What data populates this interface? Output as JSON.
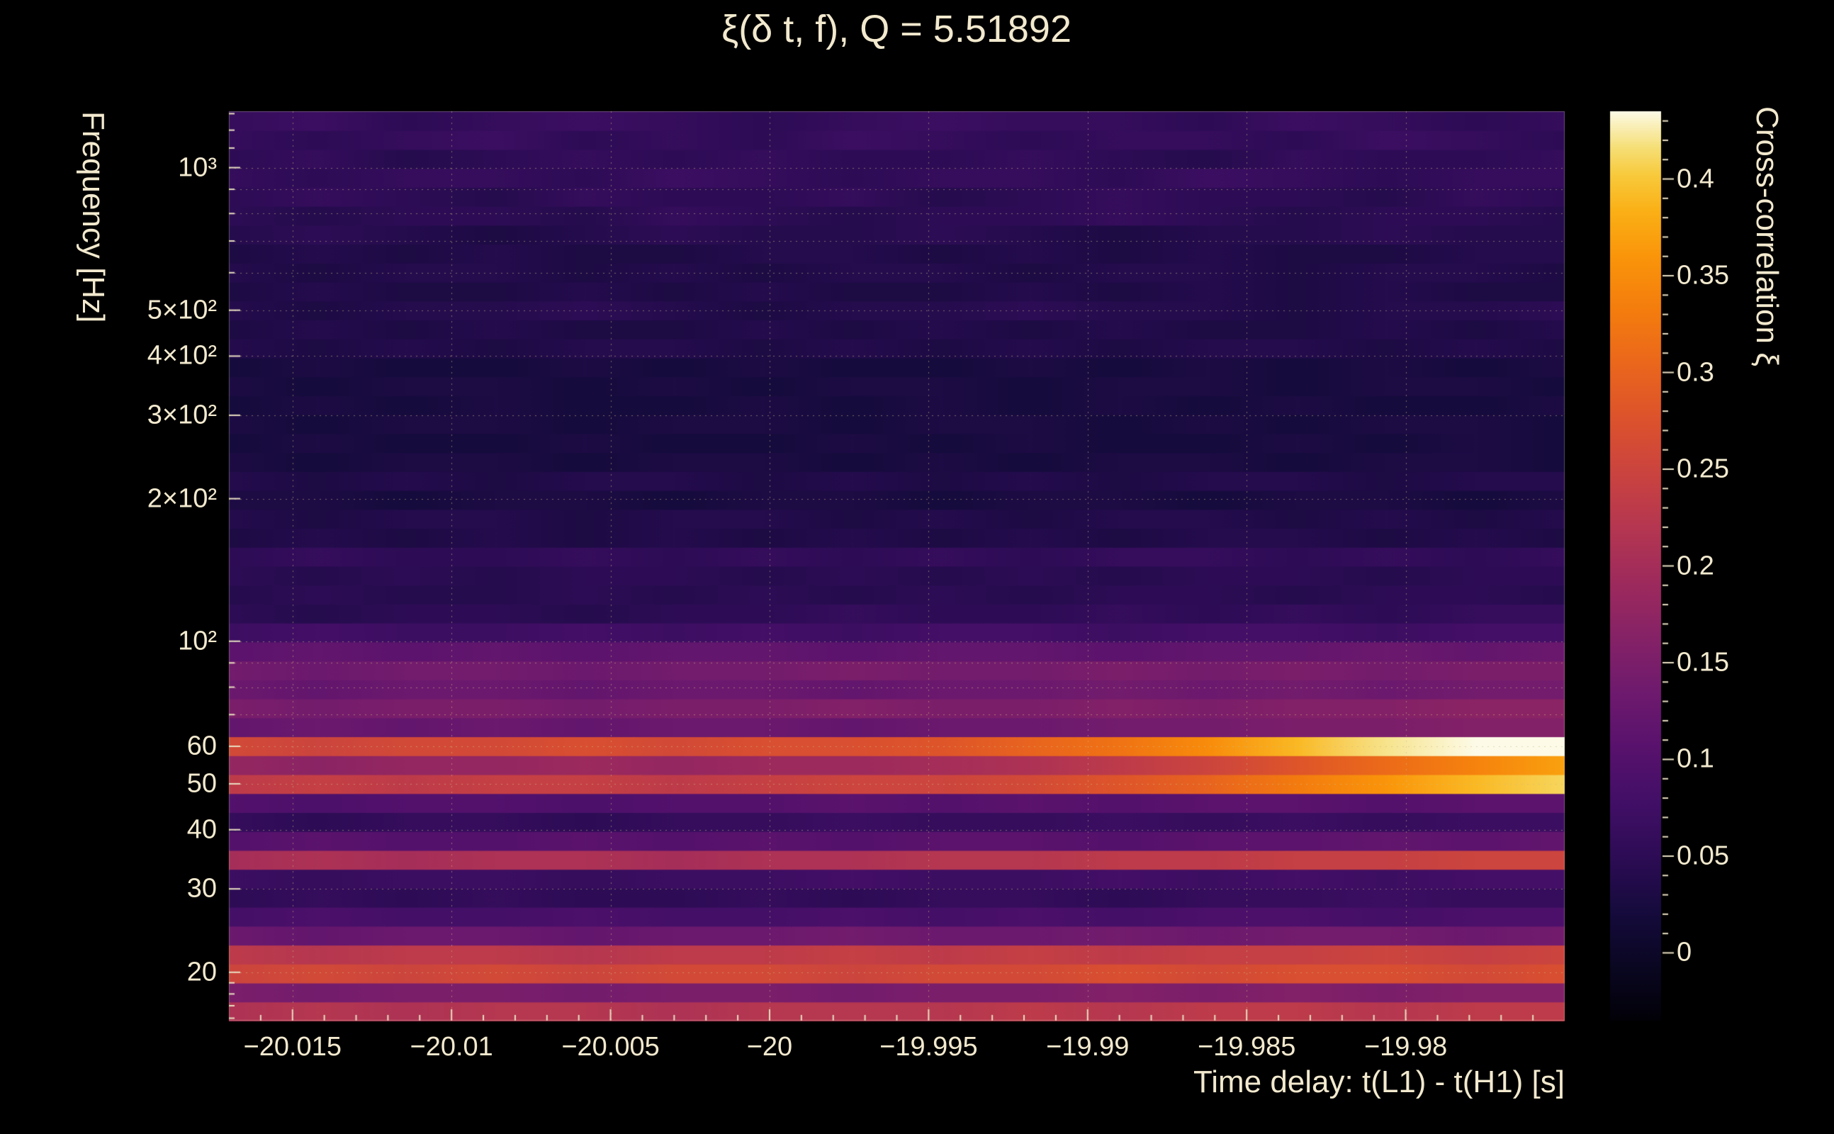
{
  "chart_data": {
    "type": "heatmap",
    "title": "ξ(δ t, f), Q = 5.51892",
    "xlabel": "Time delay: t(L1) - t(H1) [s]",
    "ylabel": "Frequency [Hz]",
    "zlabel": "Cross-correlation ξ",
    "x_range": [
      -20.017,
      -19.975
    ],
    "y_range_hz": [
      15.8,
      1315
    ],
    "y_scale": "log",
    "z_range": [
      -0.035,
      0.435
    ],
    "x_ticks": {
      "values": [
        -20.015,
        -20.01,
        -20.005,
        -20.0,
        -19.995,
        -19.99,
        -19.985,
        -19.98
      ],
      "labels": [
        "−20.015",
        "−20.01",
        "−20.005",
        "−20",
        "−19.995",
        "−19.99",
        "−19.985",
        "−19.98"
      ]
    },
    "y_ticks": {
      "values": [
        1000,
        500,
        400,
        300,
        200,
        100,
        60,
        50,
        40,
        30,
        20
      ],
      "labels": [
        "10³",
        "5×10²",
        "4×10²",
        "3×10²",
        "2×10²",
        "10²",
        "60",
        "50",
        "40",
        "30",
        "20"
      ]
    },
    "y_minor_ticks": [
      16,
      17,
      18,
      19,
      70,
      80,
      90,
      600,
      700,
      800,
      900,
      1100,
      1200,
      1300
    ],
    "grid_freqs": [
      20,
      30,
      40,
      50,
      60,
      70,
      80,
      90,
      100,
      200,
      300,
      400,
      500,
      600,
      700,
      800,
      900,
      1000
    ],
    "z_ticks": {
      "values": [
        0,
        0.05,
        0.1,
        0.15,
        0.2,
        0.25,
        0.3,
        0.35,
        0.4
      ],
      "labels": [
        "0",
        "0.05",
        "0.1",
        "0.15",
        "0.2",
        "0.25",
        "0.3",
        "0.35",
        "0.4"
      ]
    },
    "n_rows": 48,
    "n_cols": 16,
    "row_log_f_range": [
      1.199,
      3.119
    ],
    "rows": [
      [
        0.21,
        0.22,
        0.21,
        0.22,
        0.22,
        0.21,
        0.22,
        0.22,
        0.22,
        0.23,
        0.22,
        0.23,
        0.23,
        0.22,
        0.23,
        0.23
      ],
      [
        0.15,
        0.14,
        0.15,
        0.15,
        0.14,
        0.15,
        0.15,
        0.14,
        0.15,
        0.15,
        0.16,
        0.15,
        0.16,
        0.15,
        0.16,
        0.16
      ],
      [
        0.25,
        0.26,
        0.25,
        0.26,
        0.25,
        0.26,
        0.26,
        0.25,
        0.26,
        0.26,
        0.27,
        0.26,
        0.27,
        0.27,
        0.26,
        0.27
      ],
      [
        0.23,
        0.22,
        0.23,
        0.23,
        0.22,
        0.23,
        0.23,
        0.24,
        0.23,
        0.24,
        0.23,
        0.24,
        0.24,
        0.25,
        0.24,
        0.25
      ],
      [
        0.13,
        0.12,
        0.13,
        0.13,
        0.12,
        0.13,
        0.13,
        0.14,
        0.13,
        0.13,
        0.14,
        0.13,
        0.14,
        0.14,
        0.13,
        0.14
      ],
      [
        0.08,
        0.09,
        0.08,
        0.08,
        0.09,
        0.08,
        0.08,
        0.09,
        0.08,
        0.09,
        0.08,
        0.09,
        0.09,
        0.08,
        0.09,
        0.09
      ],
      [
        0.05,
        0.06,
        0.05,
        0.06,
        0.05,
        0.05,
        0.06,
        0.05,
        0.06,
        0.06,
        0.05,
        0.06,
        0.06,
        0.07,
        0.06,
        0.06
      ],
      [
        0.07,
        0.06,
        0.07,
        0.07,
        0.06,
        0.07,
        0.07,
        0.08,
        0.07,
        0.07,
        0.08,
        0.07,
        0.08,
        0.07,
        0.08,
        0.08
      ],
      [
        0.2,
        0.21,
        0.2,
        0.21,
        0.21,
        0.2,
        0.21,
        0.21,
        0.22,
        0.22,
        0.23,
        0.23,
        0.24,
        0.24,
        0.25,
        0.25
      ],
      [
        0.1,
        0.11,
        0.1,
        0.1,
        0.11,
        0.1,
        0.11,
        0.1,
        0.11,
        0.11,
        0.1,
        0.11,
        0.11,
        0.12,
        0.11,
        0.12
      ],
      [
        0.06,
        0.05,
        0.06,
        0.06,
        0.05,
        0.06,
        0.06,
        0.07,
        0.06,
        0.06,
        0.07,
        0.06,
        0.07,
        0.06,
        0.07,
        0.07
      ],
      [
        0.1,
        0.09,
        0.1,
        0.1,
        0.09,
        0.1,
        0.1,
        0.11,
        0.1,
        0.11,
        0.1,
        0.11,
        0.11,
        0.1,
        0.11,
        0.11
      ],
      [
        0.23,
        0.24,
        0.23,
        0.24,
        0.24,
        0.23,
        0.24,
        0.25,
        0.25,
        0.26,
        0.28,
        0.3,
        0.33,
        0.36,
        0.39,
        0.41
      ],
      [
        0.18,
        0.17,
        0.18,
        0.18,
        0.19,
        0.18,
        0.19,
        0.19,
        0.2,
        0.21,
        0.23,
        0.25,
        0.28,
        0.31,
        0.34,
        0.37
      ],
      [
        0.26,
        0.25,
        0.26,
        0.26,
        0.27,
        0.26,
        0.27,
        0.27,
        0.28,
        0.3,
        0.32,
        0.35,
        0.39,
        0.42,
        0.44,
        0.445
      ],
      [
        0.12,
        0.13,
        0.12,
        0.13,
        0.12,
        0.13,
        0.13,
        0.12,
        0.13,
        0.13,
        0.14,
        0.14,
        0.15,
        0.15,
        0.16,
        0.16
      ],
      [
        0.15,
        0.14,
        0.15,
        0.15,
        0.14,
        0.15,
        0.15,
        0.16,
        0.15,
        0.15,
        0.16,
        0.15,
        0.16,
        0.16,
        0.17,
        0.17
      ],
      [
        0.13,
        0.12,
        0.13,
        0.13,
        0.12,
        0.13,
        0.13,
        0.12,
        0.13,
        0.13,
        0.14,
        0.13,
        0.14,
        0.13,
        0.14,
        0.14
      ],
      [
        0.14,
        0.13,
        0.14,
        0.14,
        0.13,
        0.14,
        0.14,
        0.15,
        0.14,
        0.14,
        0.15,
        0.14,
        0.15,
        0.14,
        0.15,
        0.15
      ],
      [
        0.11,
        0.12,
        0.11,
        0.12,
        0.11,
        0.12,
        0.12,
        0.11,
        0.12,
        0.12,
        0.11,
        0.12,
        0.12,
        0.13,
        0.12,
        0.13
      ],
      [
        0.07,
        0.08,
        0.07,
        0.07,
        0.08,
        0.07,
        0.08,
        0.07,
        0.08,
        0.08,
        0.07,
        0.08,
        0.08,
        0.07,
        0.08,
        0.08
      ],
      [
        0.05,
        0.04,
        0.05,
        0.05,
        0.04,
        0.05,
        0.05,
        0.06,
        0.05,
        0.05,
        0.06,
        0.05,
        0.06,
        0.05,
        0.06,
        0.06
      ],
      [
        0.04,
        0.05,
        0.04,
        0.04,
        0.05,
        0.04,
        0.05,
        0.04,
        0.05,
        0.04,
        0.05,
        0.05,
        0.04,
        0.05,
        0.05,
        0.04
      ],
      [
        0.05,
        0.04,
        0.05,
        0.04,
        0.05,
        0.05,
        0.04,
        0.05,
        0.04,
        0.05,
        0.04,
        0.05,
        0.05,
        0.04,
        0.05,
        0.05
      ],
      [
        0.05,
        0.06,
        0.05,
        0.05,
        0.06,
        0.05,
        0.06,
        0.05,
        0.06,
        0.05,
        0.06,
        0.06,
        0.05,
        0.06,
        0.05,
        0.06
      ],
      [
        0.03,
        0.04,
        0.03,
        0.04,
        0.03,
        0.04,
        0.03,
        0.04,
        0.03,
        0.04,
        0.03,
        0.04,
        0.04,
        0.03,
        0.04,
        0.03
      ],
      [
        0.04,
        0.03,
        0.04,
        0.04,
        0.03,
        0.04,
        0.04,
        0.03,
        0.04,
        0.03,
        0.04,
        0.04,
        0.03,
        0.04,
        0.03,
        0.04
      ],
      [
        0.03,
        0.03,
        0.02,
        0.03,
        0.03,
        0.02,
        0.03,
        0.03,
        0.02,
        0.03,
        0.03,
        0.02,
        0.03,
        0.03,
        0.02,
        0.03
      ],
      [
        0.04,
        0.03,
        0.04,
        0.03,
        0.04,
        0.04,
        0.03,
        0.04,
        0.03,
        0.04,
        0.03,
        0.04,
        0.04,
        0.03,
        0.04,
        0.04
      ],
      [
        0.03,
        0.02,
        0.03,
        0.03,
        0.02,
        0.03,
        0.03,
        0.02,
        0.03,
        0.02,
        0.03,
        0.03,
        0.02,
        0.03,
        0.03,
        0.02
      ],
      [
        0.02,
        0.03,
        0.02,
        0.02,
        0.03,
        0.02,
        0.02,
        0.03,
        0.02,
        0.03,
        0.02,
        0.02,
        0.03,
        0.02,
        0.03,
        0.02
      ],
      [
        0.03,
        0.02,
        0.03,
        0.03,
        0.02,
        0.03,
        0.03,
        0.02,
        0.03,
        0.03,
        0.02,
        0.03,
        0.02,
        0.03,
        0.03,
        0.02
      ],
      [
        0.02,
        0.03,
        0.02,
        0.03,
        0.02,
        0.02,
        0.03,
        0.02,
        0.03,
        0.02,
        0.03,
        0.02,
        0.03,
        0.02,
        0.02,
        0.03
      ],
      [
        0.03,
        0.02,
        0.03,
        0.03,
        0.02,
        0.03,
        0.02,
        0.03,
        0.03,
        0.02,
        0.03,
        0.03,
        0.02,
        0.03,
        0.03,
        0.02
      ],
      [
        0.02,
        0.03,
        0.02,
        0.02,
        0.03,
        0.02,
        0.03,
        0.02,
        0.02,
        0.03,
        0.02,
        0.03,
        0.02,
        0.03,
        0.02,
        0.03
      ],
      [
        0.04,
        0.03,
        0.04,
        0.03,
        0.04,
        0.04,
        0.03,
        0.04,
        0.03,
        0.04,
        0.03,
        0.04,
        0.04,
        0.03,
        0.04,
        0.03
      ],
      [
        0.03,
        0.04,
        0.03,
        0.04,
        0.03,
        0.03,
        0.04,
        0.03,
        0.04,
        0.03,
        0.04,
        0.03,
        0.03,
        0.04,
        0.03,
        0.04
      ],
      [
        0.04,
        0.03,
        0.04,
        0.04,
        0.05,
        0.04,
        0.03,
        0.04,
        0.04,
        0.05,
        0.04,
        0.04,
        0.03,
        0.04,
        0.04,
        0.05
      ],
      [
        0.03,
        0.04,
        0.03,
        0.03,
        0.04,
        0.03,
        0.04,
        0.03,
        0.03,
        0.04,
        0.03,
        0.04,
        0.03,
        0.04,
        0.03,
        0.03
      ],
      [
        0.04,
        0.03,
        0.04,
        0.04,
        0.03,
        0.04,
        0.03,
        0.04,
        0.04,
        0.03,
        0.04,
        0.04,
        0.03,
        0.04,
        0.04,
        0.03
      ],
      [
        0.03,
        0.04,
        0.03,
        0.04,
        0.03,
        0.03,
        0.04,
        0.04,
        0.03,
        0.04,
        0.03,
        0.04,
        0.03,
        0.03,
        0.04,
        0.04
      ],
      [
        0.04,
        0.05,
        0.04,
        0.03,
        0.04,
        0.05,
        0.04,
        0.04,
        0.05,
        0.04,
        0.03,
        0.04,
        0.04,
        0.05,
        0.04,
        0.04
      ],
      [
        0.05,
        0.04,
        0.05,
        0.05,
        0.04,
        0.06,
        0.05,
        0.04,
        0.05,
        0.05,
        0.06,
        0.05,
        0.04,
        0.05,
        0.05,
        0.04
      ],
      [
        0.05,
        0.06,
        0.05,
        0.04,
        0.06,
        0.05,
        0.05,
        0.06,
        0.04,
        0.05,
        0.06,
        0.05,
        0.05,
        0.04,
        0.06,
        0.05
      ],
      [
        0.06,
        0.05,
        0.06,
        0.06,
        0.05,
        0.07,
        0.06,
        0.05,
        0.06,
        0.06,
        0.05,
        0.07,
        0.06,
        0.05,
        0.06,
        0.06
      ],
      [
        0.05,
        0.06,
        0.04,
        0.05,
        0.06,
        0.05,
        0.06,
        0.05,
        0.05,
        0.06,
        0.05,
        0.04,
        0.06,
        0.05,
        0.05,
        0.06
      ],
      [
        0.06,
        0.05,
        0.06,
        0.07,
        0.05,
        0.06,
        0.05,
        0.07,
        0.06,
        0.05,
        0.06,
        0.06,
        0.05,
        0.07,
        0.06,
        0.05
      ],
      [
        0.06,
        0.07,
        0.05,
        0.06,
        0.07,
        0.06,
        0.05,
        0.06,
        0.07,
        0.06,
        0.06,
        0.05,
        0.07,
        0.06,
        0.05,
        0.06
      ]
    ],
    "colormap_stops": [
      [
        0.0,
        "#020108"
      ],
      [
        0.06,
        "#0a0722"
      ],
      [
        0.12,
        "#160b3d"
      ],
      [
        0.18,
        "#2d0c55"
      ],
      [
        0.24,
        "#420f67"
      ],
      [
        0.3,
        "#58126d"
      ],
      [
        0.36,
        "#6e1a6e"
      ],
      [
        0.42,
        "#852267"
      ],
      [
        0.48,
        "#9d2a5d"
      ],
      [
        0.54,
        "#b43651"
      ],
      [
        0.6,
        "#ca4340"
      ],
      [
        0.66,
        "#dc522d"
      ],
      [
        0.72,
        "#ea661d"
      ],
      [
        0.78,
        "#f47c0e"
      ],
      [
        0.84,
        "#fa950a"
      ],
      [
        0.89,
        "#fbb016"
      ],
      [
        0.93,
        "#f8ca3c"
      ],
      [
        0.96,
        "#f6df77"
      ],
      [
        0.985,
        "#faf0bb"
      ],
      [
        1.0,
        "#fdfbe8"
      ]
    ],
    "grid_color": "#cdb97f",
    "text_color": "#f2e9ce",
    "tick_color": "#e9dfc2",
    "legend_position": "right-colorbar",
    "grid": true
  }
}
